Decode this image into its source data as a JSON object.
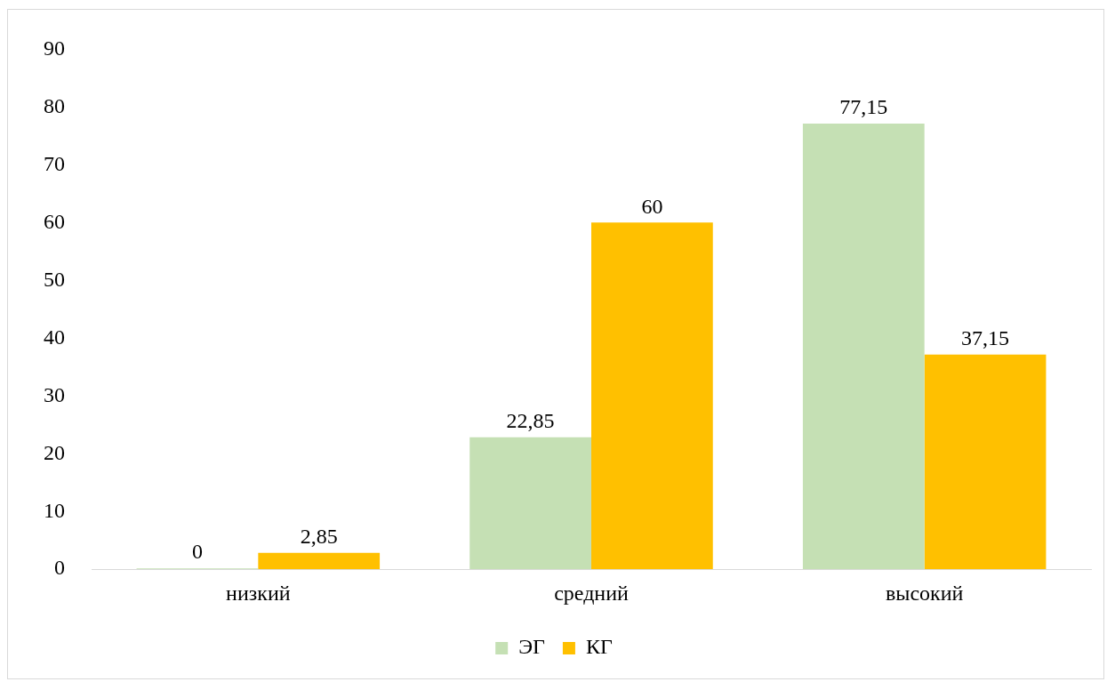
{
  "chart_data": {
    "type": "bar",
    "categories": [
      "низкий",
      "средний",
      "высокий"
    ],
    "series": [
      {
        "name": "ЭГ",
        "color": "#c5e0b4",
        "values": [
          0,
          22.85,
          77.15
        ],
        "value_labels": [
          "0",
          "22,85",
          "77,15"
        ]
      },
      {
        "name": "КГ",
        "color": "#ffc000",
        "values": [
          2.85,
          60,
          37.15
        ],
        "value_labels": [
          "2,85",
          "60",
          "37,15"
        ]
      }
    ],
    "ylim": [
      0,
      90
    ],
    "yticks": [
      0,
      10,
      20,
      30,
      40,
      50,
      60,
      70,
      80,
      90
    ],
    "grid": false,
    "legend": "bottom"
  }
}
